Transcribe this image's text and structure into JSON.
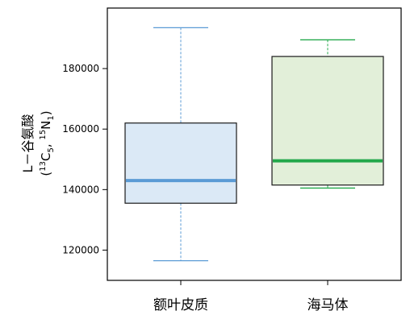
{
  "chart_data": {
    "type": "box",
    "ylabel_line1": "L－谷氨酸",
    "ylabel_line2": {
      "open": "(",
      "c_sup": "13",
      "c": "C",
      "c_sub": "5",
      "comma": ", ",
      "n_sup": "15",
      "n": "N",
      "n_sub": "1",
      "close": ")"
    },
    "ylim": [
      110000,
      200000
    ],
    "yticks": [
      120000,
      140000,
      160000,
      180000
    ],
    "ytick_labels": [
      "120000",
      "140000",
      "160000",
      "180000"
    ],
    "categories": [
      "额叶皮质",
      "海马体"
    ],
    "boxes": [
      {
        "category": "额叶皮质",
        "min": 116500,
        "q1": 135500,
        "median": 143000,
        "q3": 162000,
        "max": 193500,
        "fill": "#dbe9f6",
        "median_color": "#5b9bd5",
        "whisker_color": "#5b9bd5"
      },
      {
        "category": "海马体",
        "min": 140500,
        "q1": 141500,
        "median": 149500,
        "q3": 184000,
        "max": 189500,
        "fill": "#e2efd9",
        "median_color": "#22a84a",
        "whisker_color": "#22a84a"
      }
    ],
    "grid": false,
    "legend": "none"
  }
}
